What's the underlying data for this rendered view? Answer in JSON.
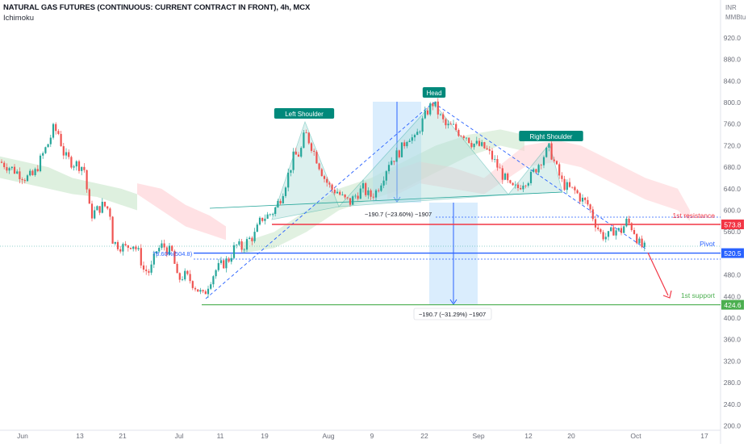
{
  "header": {
    "title": "NATURAL GAS FUTURES (CONTINUOUS: CURRENT CONTRACT IN FRONT), 4h, MCX",
    "indicator": "Ichimoku"
  },
  "axis": {
    "currency": "INR",
    "unit": "MMBtu"
  },
  "labels": {
    "left_shoulder": "Left Shoulder",
    "head": "Head",
    "right_shoulder": "Right Shoulder",
    "first_resistance": "1st resistance",
    "pivot": "Pivot",
    "first_support": "1st support",
    "fib_label": "78.60%(504.8)",
    "measure_1": "−190.7 (−23.60%) −1907",
    "measure_2": "−190.7 (−31.29%) −1907"
  },
  "colors": {
    "resistance": "#f23645",
    "pivot": "#2962ff",
    "support": "#4caf50",
    "pattern_fill": "#b2dfdb",
    "pattern_line": "#26a69a",
    "up_candle": "#26a69a",
    "down_candle": "#ef5350",
    "cloud_bull": "#c8e6c9",
    "cloud_bear": "#ffcdd2",
    "measure_fill": "#bbdefb",
    "badge_green": "#00897b"
  },
  "chart_data": {
    "type": "candlestick",
    "title": "NATURAL GAS FUTURES (CONTINUOUS: CURRENT CONTRACT IN FRONT), 4h, MCX",
    "ylim": [
      190,
      960
    ],
    "y_ticks": [
      920.0,
      880.0,
      840.0,
      800.0,
      760.0,
      720.0,
      680.0,
      640.0,
      600.0,
      560.0,
      520.0,
      480.0,
      440.0,
      400.0,
      360.0,
      320.0,
      280.0,
      240.0,
      200.0
    ],
    "x_ticks": [
      "Jun",
      "13",
      "21",
      "Jul",
      "11",
      "19",
      "Aug",
      "9",
      "22",
      "Sep",
      "12",
      "20",
      "Oct",
      "17"
    ],
    "price_labels": [
      {
        "name": "1st resistance",
        "value": 573.8,
        "color": "#f23645"
      },
      {
        "name": "Pivot",
        "value": 520.5,
        "color": "#2962ff"
      },
      {
        "name": "1st support",
        "value": 424.6,
        "color": "#4caf50"
      }
    ],
    "price_path": [
      [
        0,
        690
      ],
      [
        12,
        680
      ],
      [
        22,
        670
      ],
      [
        32,
        660
      ],
      [
        42,
        665
      ],
      [
        52,
        700
      ],
      [
        60,
        725
      ],
      [
        66,
        750
      ],
      [
        72,
        745
      ],
      [
        80,
        700
      ],
      [
        88,
        690
      ],
      [
        96,
        685
      ],
      [
        104,
        680
      ],
      [
        112,
        590
      ],
      [
        120,
        600
      ],
      [
        128,
        610
      ],
      [
        136,
        600
      ],
      [
        140,
        540
      ],
      [
        148,
        535
      ],
      [
        156,
        530
      ],
      [
        164,
        540
      ],
      [
        172,
        520
      ],
      [
        178,
        490
      ],
      [
        186,
        485
      ],
      [
        194,
        525
      ],
      [
        202,
        535
      ],
      [
        208,
        525
      ],
      [
        214,
        520
      ],
      [
        220,
        470
      ],
      [
        228,
        480
      ],
      [
        236,
        470
      ],
      [
        244,
        455
      ],
      [
        252,
        440
      ],
      [
        260,
        470
      ],
      [
        268,
        490
      ],
      [
        276,
        500
      ],
      [
        284,
        510
      ],
      [
        292,
        535
      ],
      [
        300,
        530
      ],
      [
        308,
        545
      ],
      [
        316,
        555
      ],
      [
        324,
        585
      ],
      [
        332,
        590
      ],
      [
        340,
        600
      ],
      [
        348,
        625
      ],
      [
        356,
        660
      ],
      [
        364,
        700
      ],
      [
        372,
        705
      ],
      [
        378,
        745
      ],
      [
        386,
        720
      ],
      [
        394,
        690
      ],
      [
        402,
        660
      ],
      [
        410,
        640
      ],
      [
        418,
        635
      ],
      [
        426,
        620
      ],
      [
        434,
        615
      ],
      [
        442,
        630
      ],
      [
        450,
        640
      ],
      [
        458,
        625
      ],
      [
        466,
        635
      ],
      [
        474,
        660
      ],
      [
        482,
        690
      ],
      [
        490,
        700
      ],
      [
        498,
        715
      ],
      [
        506,
        740
      ],
      [
        514,
        730
      ],
      [
        522,
        760
      ],
      [
        530,
        785
      ],
      [
        537,
        800
      ],
      [
        545,
        775
      ],
      [
        553,
        755
      ],
      [
        561,
        755
      ],
      [
        569,
        745
      ],
      [
        577,
        740
      ],
      [
        585,
        725
      ],
      [
        593,
        720
      ],
      [
        601,
        715
      ],
      [
        609,
        700
      ],
      [
        617,
        680
      ],
      [
        625,
        660
      ],
      [
        633,
        640
      ],
      [
        641,
        640
      ],
      [
        649,
        655
      ],
      [
        657,
        660
      ],
      [
        665,
        680
      ],
      [
        673,
        700
      ],
      [
        681,
        715
      ],
      [
        689,
        680
      ],
      [
        697,
        650
      ],
      [
        705,
        640
      ],
      [
        713,
        635
      ],
      [
        721,
        620
      ],
      [
        729,
        610
      ],
      [
        737,
        580
      ],
      [
        745,
        555
      ],
      [
        753,
        550
      ],
      [
        761,
        565
      ],
      [
        769,
        560
      ],
      [
        777,
        580
      ],
      [
        785,
        565
      ],
      [
        793,
        535
      ],
      [
        800,
        528
      ]
    ]
  }
}
